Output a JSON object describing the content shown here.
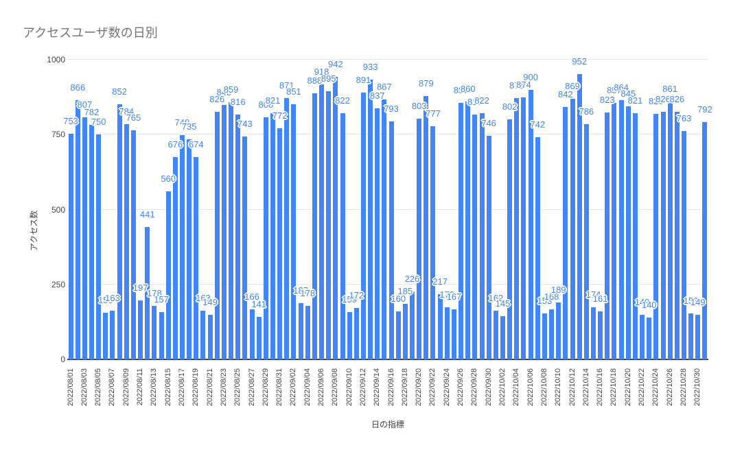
{
  "title": "アクセスユーザ数の日別",
  "chart_data": {
    "type": "bar",
    "title": "アクセスユーザ数の日別",
    "xlabel": "日の指標",
    "ylabel": "アクセス数",
    "ylim": [
      0,
      1000
    ],
    "y_ticks": [
      0,
      250,
      500,
      750,
      1000
    ],
    "y_tick_labels": [
      "0",
      "250",
      "500",
      "750",
      "1000"
    ],
    "bar_color": "#4285f4",
    "label_color": "#4285f4",
    "grid": true,
    "legend_position": "none",
    "categories": [
      "2022/08/01",
      "2022/08/02",
      "2022/08/03",
      "2022/08/04",
      "2022/08/05",
      "2022/08/06",
      "2022/08/07",
      "2022/08/08",
      "2022/08/09",
      "2022/08/10",
      "2022/08/11",
      "2022/08/12",
      "2022/08/13",
      "2022/08/14",
      "2022/08/15",
      "2022/08/16",
      "2022/08/17",
      "2022/08/18",
      "2022/08/19",
      "2022/08/20",
      "2022/08/21",
      "2022/08/22",
      "2022/08/23",
      "2022/08/24",
      "2022/08/25",
      "2022/08/26",
      "2022/08/27",
      "2022/08/28",
      "2022/08/29",
      "2022/08/30",
      "2022/08/31",
      "2022/09/01",
      "2022/09/02",
      "2022/09/03",
      "2022/09/04",
      "2022/09/05",
      "2022/09/06",
      "2022/09/07",
      "2022/09/08",
      "2022/09/09",
      "2022/09/10",
      "2022/09/11",
      "2022/09/12",
      "2022/09/13",
      "2022/09/14",
      "2022/09/15",
      "2022/09/16",
      "2022/09/17",
      "2022/09/18",
      "2022/09/19",
      "2022/09/20",
      "2022/09/21",
      "2022/09/22",
      "2022/09/23",
      "2022/09/24",
      "2022/09/25",
      "2022/09/26",
      "2022/09/27",
      "2022/09/28",
      "2022/09/29",
      "2022/09/30",
      "2022/10/01",
      "2022/10/02",
      "2022/10/03",
      "2022/10/04",
      "2022/10/05",
      "2022/10/06",
      "2022/10/07",
      "2022/10/08",
      "2022/10/09",
      "2022/10/10",
      "2022/10/11",
      "2022/10/12",
      "2022/10/13",
      "2022/10/14",
      "2022/10/15",
      "2022/10/16",
      "2022/10/17",
      "2022/10/18",
      "2022/10/19",
      "2022/10/20",
      "2022/10/21",
      "2022/10/22",
      "2022/10/23",
      "2022/10/24",
      "2022/10/25",
      "2022/10/26",
      "2022/10/27",
      "2022/10/28",
      "2022/10/29",
      "2022/10/30",
      "2022/10/31"
    ],
    "values": [
      753,
      866,
      807,
      782,
      750,
      155,
      163,
      852,
      784,
      765,
      197,
      441,
      178,
      157,
      560,
      676,
      749,
      735,
      674,
      163,
      149,
      826,
      848,
      859,
      816,
      743,
      166,
      141,
      808,
      821,
      772,
      871,
      851,
      187,
      178,
      888,
      918,
      895,
      942,
      822,
      159,
      172,
      891,
      933,
      837,
      867,
      793,
      160,
      185,
      226,
      803,
      879,
      777,
      217,
      173,
      167,
      857,
      860,
      817,
      822,
      746,
      162,
      145,
      802,
      871,
      874,
      900,
      742,
      153,
      168,
      189,
      842,
      869,
      952,
      786,
      174,
      161,
      823,
      857,
      864,
      845,
      821,
      149,
      140,
      820,
      826,
      861,
      826,
      763,
      153,
      149,
      792
    ],
    "x_tick_every": 2
  }
}
